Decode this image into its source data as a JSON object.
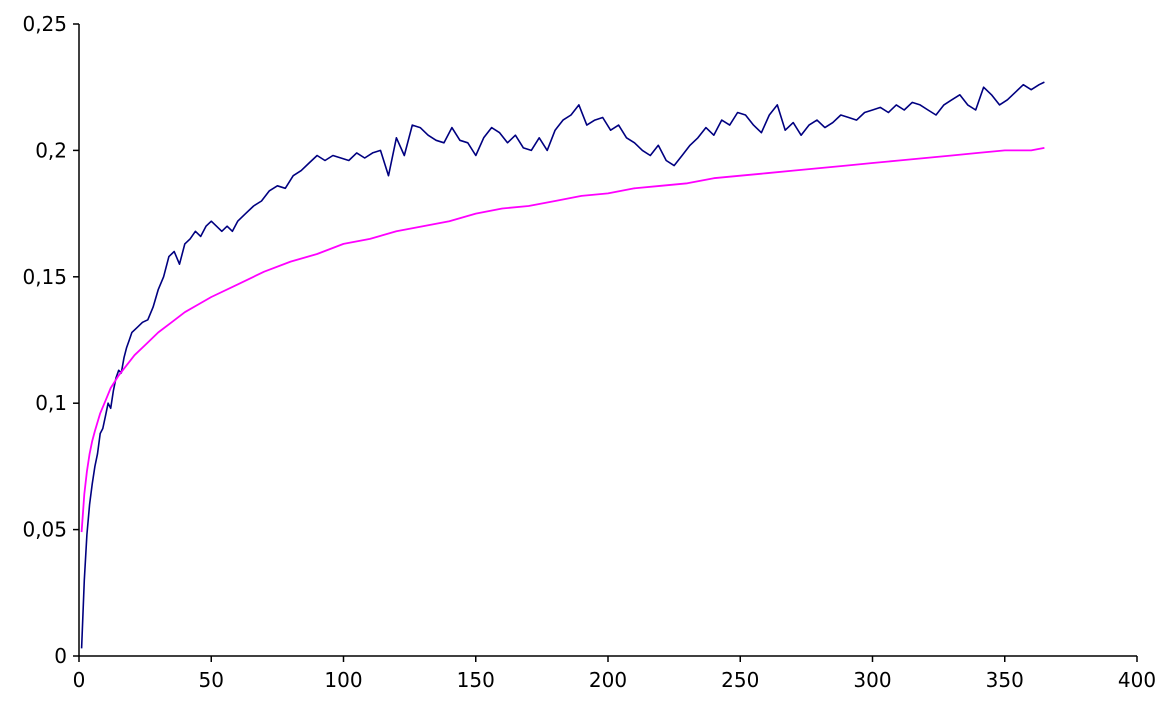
{
  "chart_data": {
    "type": "line",
    "title": "",
    "xlabel": "",
    "ylabel": "",
    "xlim": [
      0,
      400
    ],
    "ylim": [
      0,
      0.25
    ],
    "grid": false,
    "legend": "none",
    "x_ticks": [
      {
        "value": 0,
        "label": "0"
      },
      {
        "value": 50,
        "label": "50"
      },
      {
        "value": 100,
        "label": "100"
      },
      {
        "value": 150,
        "label": "150"
      },
      {
        "value": 200,
        "label": "200"
      },
      {
        "value": 250,
        "label": "250"
      },
      {
        "value": 300,
        "label": "300"
      },
      {
        "value": 350,
        "label": "350"
      },
      {
        "value": 400,
        "label": "400"
      }
    ],
    "y_ticks": [
      {
        "value": 0,
        "label": "0"
      },
      {
        "value": 0.05,
        "label": "0,05"
      },
      {
        "value": 0.1,
        "label": "0,1"
      },
      {
        "value": 0.15,
        "label": "0,15"
      },
      {
        "value": 0.2,
        "label": "0,2"
      },
      {
        "value": 0.25,
        "label": "0,25"
      }
    ],
    "series": [
      {
        "color": "#000080",
        "x": [
          1,
          2,
          3,
          4,
          5,
          6,
          7,
          8,
          9,
          10,
          11,
          12,
          13,
          14,
          15,
          16,
          17,
          18,
          19,
          20,
          22,
          24,
          26,
          28,
          30,
          32,
          34,
          36,
          38,
          40,
          42,
          44,
          46,
          48,
          50,
          52,
          54,
          56,
          58,
          60,
          63,
          66,
          69,
          72,
          75,
          78,
          81,
          84,
          87,
          90,
          93,
          96,
          99,
          102,
          105,
          108,
          111,
          114,
          117,
          120,
          123,
          126,
          129,
          132,
          135,
          138,
          141,
          144,
          147,
          150,
          153,
          156,
          159,
          162,
          165,
          168,
          171,
          174,
          177,
          180,
          183,
          186,
          189,
          192,
          195,
          198,
          201,
          204,
          207,
          210,
          213,
          216,
          219,
          222,
          225,
          228,
          231,
          234,
          237,
          240,
          243,
          246,
          249,
          252,
          255,
          258,
          261,
          264,
          267,
          270,
          273,
          276,
          279,
          282,
          285,
          288,
          291,
          294,
          297,
          300,
          303,
          306,
          309,
          312,
          315,
          318,
          321,
          324,
          327,
          330,
          333,
          336,
          339,
          342,
          345,
          348,
          351,
          354,
          357,
          360,
          363,
          365
        ],
        "values": [
          0.003,
          0.03,
          0.048,
          0.06,
          0.068,
          0.075,
          0.08,
          0.088,
          0.09,
          0.095,
          0.1,
          0.098,
          0.105,
          0.11,
          0.113,
          0.112,
          0.118,
          0.122,
          0.125,
          0.128,
          0.13,
          0.132,
          0.133,
          0.138,
          0.145,
          0.15,
          0.158,
          0.16,
          0.155,
          0.163,
          0.165,
          0.168,
          0.166,
          0.17,
          0.172,
          0.17,
          0.168,
          0.17,
          0.168,
          0.172,
          0.175,
          0.178,
          0.18,
          0.184,
          0.186,
          0.185,
          0.19,
          0.192,
          0.195,
          0.198,
          0.196,
          0.198,
          0.197,
          0.196,
          0.199,
          0.197,
          0.199,
          0.2,
          0.19,
          0.205,
          0.198,
          0.21,
          0.209,
          0.206,
          0.204,
          0.203,
          0.209,
          0.204,
          0.203,
          0.198,
          0.205,
          0.209,
          0.207,
          0.203,
          0.206,
          0.201,
          0.2,
          0.205,
          0.2,
          0.208,
          0.212,
          0.214,
          0.218,
          0.21,
          0.212,
          0.213,
          0.208,
          0.21,
          0.205,
          0.203,
          0.2,
          0.198,
          0.202,
          0.196,
          0.194,
          0.198,
          0.202,
          0.205,
          0.209,
          0.206,
          0.212,
          0.21,
          0.215,
          0.214,
          0.21,
          0.207,
          0.214,
          0.218,
          0.208,
          0.211,
          0.206,
          0.21,
          0.212,
          0.209,
          0.211,
          0.214,
          0.213,
          0.212,
          0.215,
          0.216,
          0.217,
          0.215,
          0.218,
          0.216,
          0.219,
          0.218,
          0.216,
          0.214,
          0.218,
          0.22,
          0.222,
          0.218,
          0.216,
          0.225,
          0.222,
          0.218,
          0.22,
          0.223,
          0.226,
          0.224,
          0.226,
          0.227
        ]
      },
      {
        "color": "#ff00ff",
        "x": [
          1,
          2,
          3,
          4,
          5,
          6,
          8,
          10,
          12,
          15,
          18,
          21,
          25,
          30,
          35,
          40,
          45,
          50,
          60,
          70,
          80,
          90,
          100,
          110,
          120,
          130,
          140,
          150,
          160,
          170,
          180,
          190,
          200,
          210,
          220,
          230,
          240,
          250,
          260,
          270,
          280,
          290,
          300,
          310,
          320,
          330,
          340,
          350,
          360,
          365
        ],
        "values": [
          0.049,
          0.064,
          0.073,
          0.08,
          0.085,
          0.089,
          0.096,
          0.101,
          0.106,
          0.111,
          0.115,
          0.119,
          0.123,
          0.128,
          0.132,
          0.136,
          0.139,
          0.142,
          0.147,
          0.152,
          0.156,
          0.159,
          0.163,
          0.165,
          0.168,
          0.17,
          0.172,
          0.175,
          0.177,
          0.178,
          0.18,
          0.182,
          0.183,
          0.185,
          0.186,
          0.187,
          0.189,
          0.19,
          0.191,
          0.192,
          0.193,
          0.194,
          0.195,
          0.196,
          0.197,
          0.198,
          0.199,
          0.2,
          0.2,
          0.201
        ]
      }
    ]
  }
}
